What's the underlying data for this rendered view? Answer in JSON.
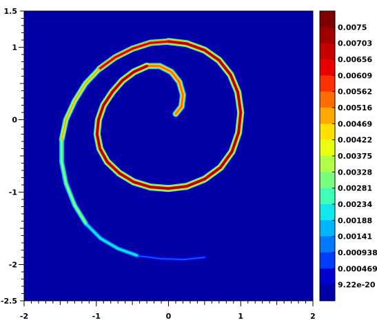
{
  "chart_data": {
    "type": "heatmap",
    "title": "",
    "xlabel": "",
    "ylabel": "",
    "xlim": [
      -2,
      2
    ],
    "ylim": [
      -2.5,
      1.5
    ],
    "x_ticks": [
      "-2",
      "-1",
      "0",
      "1",
      "2"
    ],
    "y_ticks": [
      "1.5",
      "1",
      "0",
      "-1",
      "-2",
      "-2.5"
    ],
    "background_color": "#0000a6",
    "description": "",
    "spiral_points": [
      [
        0.1,
        0.08
      ],
      [
        0.18,
        0.18
      ],
      [
        0.2,
        0.34
      ],
      [
        0.15,
        0.52
      ],
      [
        0.04,
        0.66
      ],
      [
        -0.12,
        0.74
      ],
      [
        -0.3,
        0.74
      ],
      [
        -0.48,
        0.66
      ],
      [
        -0.64,
        0.54
      ],
      [
        -0.78,
        0.38
      ],
      [
        -0.9,
        0.2
      ],
      [
        -0.97,
        0.0
      ],
      [
        -0.99,
        -0.2
      ],
      [
        -0.95,
        -0.4
      ],
      [
        -0.85,
        -0.58
      ],
      [
        -0.68,
        -0.74
      ],
      [
        -0.48,
        -0.86
      ],
      [
        -0.25,
        -0.93
      ],
      [
        0.0,
        -0.95
      ],
      [
        0.25,
        -0.92
      ],
      [
        0.5,
        -0.82
      ],
      [
        0.72,
        -0.66
      ],
      [
        0.88,
        -0.44
      ],
      [
        0.97,
        -0.18
      ],
      [
        1.0,
        0.1
      ],
      [
        0.96,
        0.38
      ],
      [
        0.86,
        0.62
      ],
      [
        0.7,
        0.82
      ],
      [
        0.5,
        0.96
      ],
      [
        0.25,
        1.05
      ],
      [
        0.0,
        1.08
      ],
      [
        -0.25,
        1.06
      ],
      [
        -0.5,
        0.98
      ],
      [
        -0.74,
        0.86
      ],
      [
        -0.96,
        0.7
      ],
      [
        -1.15,
        0.5
      ],
      [
        -1.3,
        0.26
      ],
      [
        -1.42,
        0.0
      ],
      [
        -1.48,
        -0.28
      ],
      [
        -1.48,
        -0.58
      ],
      [
        -1.42,
        -0.88
      ],
      [
        -1.3,
        -1.18
      ],
      [
        -1.14,
        -1.44
      ],
      [
        -0.94,
        -1.64
      ],
      [
        -0.7,
        -1.78
      ],
      [
        -0.42,
        -1.88
      ],
      [
        -0.1,
        -1.92
      ],
      [
        0.22,
        -1.93
      ],
      [
        0.5,
        -1.9
      ]
    ],
    "colorbar": {
      "labels": [
        "0.0075",
        "0.00703",
        "0.00656",
        "0.00609",
        "0.00562",
        "0.00516",
        "0.00469",
        "0.00422",
        "0.00375",
        "0.00328",
        "0.00281",
        "0.00234",
        "0.00188",
        "0.00141",
        "0.000938",
        "0.000469",
        "9.22e-20"
      ],
      "colors": [
        "#7f0000",
        "#a00000",
        "#c40000",
        "#e80000",
        "#ff3000",
        "#ff6c00",
        "#ffa800",
        "#ffe000",
        "#e8ff10",
        "#b0ff48",
        "#78ff80",
        "#40ffb8",
        "#10e8f0",
        "#00b4ff",
        "#0078ff",
        "#003cff",
        "#0000d0",
        "#0000a6"
      ]
    }
  }
}
